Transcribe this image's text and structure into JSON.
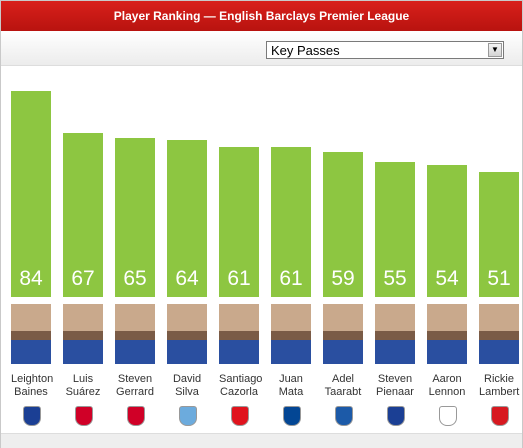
{
  "chart_data": {
    "type": "bar",
    "title": "Player Ranking — English Barclays Premier League",
    "dropdown": "Key Passes",
    "categories": [
      "Leighton Baines",
      "Luis Suárez",
      "Steven Gerrard",
      "David Silva",
      "Santiago Cazorla",
      "Juan Mata",
      "Adel Taarabt",
      "Steven Pienaar",
      "Aaron Lennon",
      "Rickie Lambert"
    ],
    "values": [
      84,
      67,
      65,
      64,
      61,
      61,
      59,
      55,
      54,
      51
    ],
    "color": "#8dc641"
  }
}
